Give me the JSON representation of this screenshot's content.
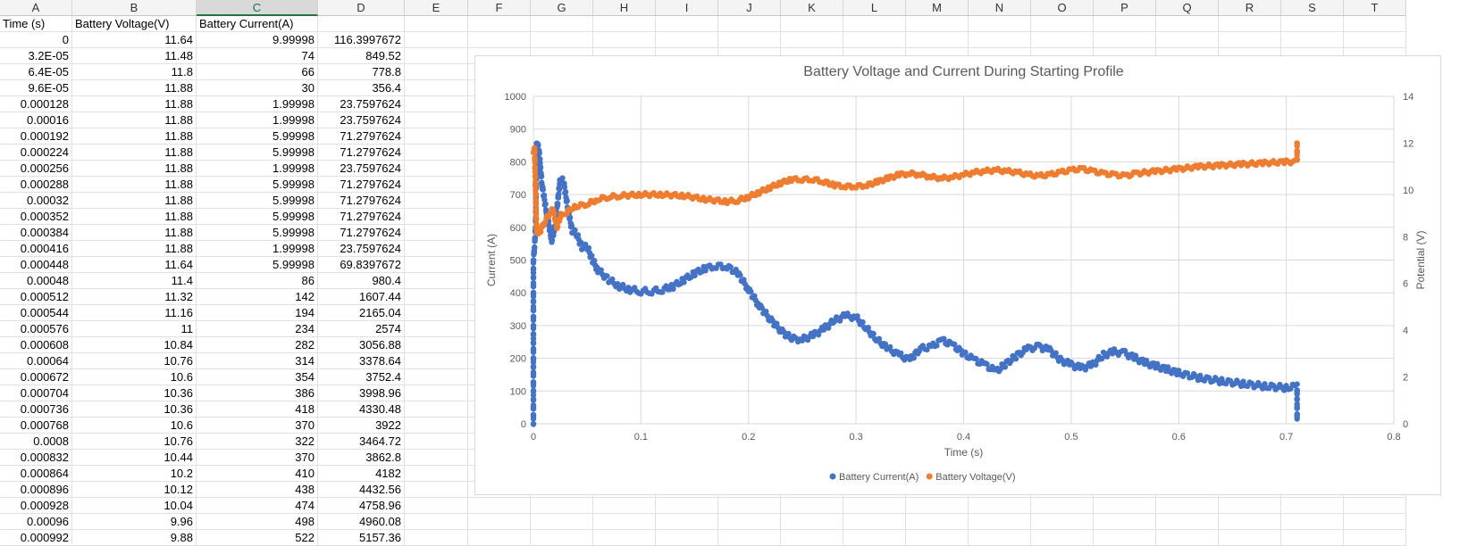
{
  "spreadsheet": {
    "columns": [
      "A",
      "B",
      "C",
      "D",
      "E",
      "F",
      "G",
      "H",
      "I",
      "J",
      "K",
      "L",
      "M",
      "N",
      "O",
      "P",
      "Q",
      "R",
      "S",
      "T"
    ],
    "selected_column": "C",
    "headers": [
      "Time (s)",
      "Battery Voltage(V)",
      "Battery Current(A)"
    ],
    "rows": [
      [
        "0",
        "11.64",
        "9.99998",
        "116.3997672"
      ],
      [
        "3.2E-05",
        "11.48",
        "74",
        "849.52"
      ],
      [
        "6.4E-05",
        "11.8",
        "66",
        "778.8"
      ],
      [
        "9.6E-05",
        "11.88",
        "30",
        "356.4"
      ],
      [
        "0.000128",
        "11.88",
        "1.99998",
        "23.7597624"
      ],
      [
        "0.00016",
        "11.88",
        "1.99998",
        "23.7597624"
      ],
      [
        "0.000192",
        "11.88",
        "5.99998",
        "71.2797624"
      ],
      [
        "0.000224",
        "11.88",
        "5.99998",
        "71.2797624"
      ],
      [
        "0.000256",
        "11.88",
        "1.99998",
        "23.7597624"
      ],
      [
        "0.000288",
        "11.88",
        "5.99998",
        "71.2797624"
      ],
      [
        "0.00032",
        "11.88",
        "5.99998",
        "71.2797624"
      ],
      [
        "0.000352",
        "11.88",
        "5.99998",
        "71.2797624"
      ],
      [
        "0.000384",
        "11.88",
        "5.99998",
        "71.2797624"
      ],
      [
        "0.000416",
        "11.88",
        "1.99998",
        "23.7597624"
      ],
      [
        "0.000448",
        "11.64",
        "5.99998",
        "69.8397672"
      ],
      [
        "0.00048",
        "11.4",
        "86",
        "980.4"
      ],
      [
        "0.000512",
        "11.32",
        "142",
        "1607.44"
      ],
      [
        "0.000544",
        "11.16",
        "194",
        "2165.04"
      ],
      [
        "0.000576",
        "11",
        "234",
        "2574"
      ],
      [
        "0.000608",
        "10.84",
        "282",
        "3056.88"
      ],
      [
        "0.00064",
        "10.76",
        "314",
        "3378.64"
      ],
      [
        "0.000672",
        "10.6",
        "354",
        "3752.4"
      ],
      [
        "0.000704",
        "10.36",
        "386",
        "3998.96"
      ],
      [
        "0.000736",
        "10.36",
        "418",
        "4330.48"
      ],
      [
        "0.000768",
        "10.6",
        "370",
        "3922"
      ],
      [
        "0.0008",
        "10.76",
        "322",
        "3464.72"
      ],
      [
        "0.000832",
        "10.44",
        "370",
        "3862.8"
      ],
      [
        "0.000864",
        "10.2",
        "410",
        "4182"
      ],
      [
        "0.000896",
        "10.12",
        "438",
        "4432.56"
      ],
      [
        "0.000928",
        "10.04",
        "474",
        "4758.96"
      ],
      [
        "0.00096",
        "9.96",
        "498",
        "4960.08"
      ],
      [
        "0.000992",
        "9.88",
        "522",
        "5157.36"
      ]
    ]
  },
  "chart_data": {
    "type": "scatter",
    "title": "Battery Voltage and Current During Starting Profile",
    "xlabel": "Time (s)",
    "ylabel": "Current (A)",
    "y2label": "Potential (V)",
    "xlim": [
      0,
      0.8
    ],
    "ylim": [
      0,
      1000
    ],
    "y2lim": [
      0,
      14
    ],
    "x_ticks": [
      "0",
      "0.1",
      "0.2",
      "0.3",
      "0.4",
      "0.5",
      "0.6",
      "0.7",
      "0.8"
    ],
    "y_ticks": [
      "0",
      "100",
      "200",
      "300",
      "400",
      "500",
      "600",
      "700",
      "800",
      "900",
      "1000"
    ],
    "y2_ticks": [
      "0",
      "2",
      "4",
      "6",
      "8",
      "10",
      "12",
      "14"
    ],
    "grid": true,
    "legend_position": "bottom",
    "series": [
      {
        "name": "Battery Current(A)",
        "axis": "left",
        "color": "#4472C4",
        "points": [
          [
            0,
            0
          ],
          [
            0,
            100
          ],
          [
            0,
            300
          ],
          [
            0,
            500
          ],
          [
            0.001,
            540
          ],
          [
            0.002,
            600
          ],
          [
            0.003,
            860
          ],
          [
            0.005,
            840
          ],
          [
            0.008,
            730
          ],
          [
            0.012,
            650
          ],
          [
            0.017,
            560
          ],
          [
            0.02,
            600
          ],
          [
            0.025,
            750
          ],
          [
            0.028,
            740
          ],
          [
            0.032,
            660
          ],
          [
            0.036,
            590
          ],
          [
            0.04,
            580
          ],
          [
            0.045,
            540
          ],
          [
            0.05,
            540
          ],
          [
            0.055,
            500
          ],
          [
            0.06,
            470
          ],
          [
            0.07,
            440
          ],
          [
            0.08,
            420
          ],
          [
            0.09,
            410
          ],
          [
            0.1,
            405
          ],
          [
            0.11,
            405
          ],
          [
            0.12,
            410
          ],
          [
            0.13,
            420
          ],
          [
            0.14,
            440
          ],
          [
            0.15,
            460
          ],
          [
            0.16,
            475
          ],
          [
            0.17,
            482
          ],
          [
            0.18,
            480
          ],
          [
            0.19,
            460
          ],
          [
            0.2,
            410
          ],
          [
            0.21,
            360
          ],
          [
            0.22,
            320
          ],
          [
            0.23,
            285
          ],
          [
            0.24,
            260
          ],
          [
            0.25,
            258
          ],
          [
            0.26,
            270
          ],
          [
            0.27,
            290
          ],
          [
            0.28,
            315
          ],
          [
            0.29,
            330
          ],
          [
            0.3,
            325
          ],
          [
            0.31,
            290
          ],
          [
            0.32,
            255
          ],
          [
            0.33,
            230
          ],
          [
            0.34,
            210
          ],
          [
            0.35,
            195
          ],
          [
            0.36,
            230
          ],
          [
            0.37,
            235
          ],
          [
            0.38,
            255
          ],
          [
            0.39,
            240
          ],
          [
            0.4,
            215
          ],
          [
            0.41,
            195
          ],
          [
            0.42,
            180
          ],
          [
            0.43,
            160
          ],
          [
            0.44,
            185
          ],
          [
            0.45,
            210
          ],
          [
            0.46,
            230
          ],
          [
            0.47,
            235
          ],
          [
            0.48,
            225
          ],
          [
            0.49,
            195
          ],
          [
            0.5,
            180
          ],
          [
            0.51,
            170
          ],
          [
            0.52,
            180
          ],
          [
            0.53,
            210
          ],
          [
            0.54,
            220
          ],
          [
            0.55,
            215
          ],
          [
            0.56,
            200
          ],
          [
            0.57,
            185
          ],
          [
            0.58,
            175
          ],
          [
            0.59,
            165
          ],
          [
            0.6,
            155
          ],
          [
            0.62,
            140
          ],
          [
            0.64,
            130
          ],
          [
            0.66,
            122
          ],
          [
            0.68,
            115
          ],
          [
            0.7,
            110
          ],
          [
            0.71,
            115
          ],
          [
            0.71,
            15
          ]
        ]
      },
      {
        "name": "Battery Voltage(V)",
        "axis": "right",
        "color": "#ED7D31",
        "points": [
          [
            0,
            11.6
          ],
          [
            0.001,
            11.8
          ],
          [
            0.002,
            10
          ],
          [
            0.003,
            8.2
          ],
          [
            0.006,
            8.2
          ],
          [
            0.01,
            8.6
          ],
          [
            0.015,
            9.0
          ],
          [
            0.018,
            9.2
          ],
          [
            0.022,
            8.4
          ],
          [
            0.026,
            9.0
          ],
          [
            0.03,
            9.0
          ],
          [
            0.035,
            9.2
          ],
          [
            0.04,
            9.3
          ],
          [
            0.05,
            9.4
          ],
          [
            0.06,
            9.6
          ],
          [
            0.07,
            9.7
          ],
          [
            0.08,
            9.75
          ],
          [
            0.1,
            9.8
          ],
          [
            0.12,
            9.8
          ],
          [
            0.14,
            9.75
          ],
          [
            0.16,
            9.6
          ],
          [
            0.18,
            9.5
          ],
          [
            0.19,
            9.55
          ],
          [
            0.2,
            9.7
          ],
          [
            0.21,
            9.9
          ],
          [
            0.22,
            10.1
          ],
          [
            0.23,
            10.3
          ],
          [
            0.24,
            10.45
          ],
          [
            0.25,
            10.45
          ],
          [
            0.26,
            10.45
          ],
          [
            0.27,
            10.35
          ],
          [
            0.28,
            10.2
          ],
          [
            0.29,
            10.15
          ],
          [
            0.3,
            10.15
          ],
          [
            0.31,
            10.2
          ],
          [
            0.32,
            10.35
          ],
          [
            0.33,
            10.5
          ],
          [
            0.34,
            10.65
          ],
          [
            0.35,
            10.7
          ],
          [
            0.36,
            10.65
          ],
          [
            0.37,
            10.55
          ],
          [
            0.38,
            10.5
          ],
          [
            0.39,
            10.55
          ],
          [
            0.4,
            10.65
          ],
          [
            0.41,
            10.75
          ],
          [
            0.42,
            10.8
          ],
          [
            0.43,
            10.85
          ],
          [
            0.44,
            10.8
          ],
          [
            0.45,
            10.75
          ],
          [
            0.46,
            10.65
          ],
          [
            0.47,
            10.6
          ],
          [
            0.48,
            10.65
          ],
          [
            0.49,
            10.75
          ],
          [
            0.5,
            10.85
          ],
          [
            0.51,
            10.9
          ],
          [
            0.52,
            10.8
          ],
          [
            0.53,
            10.7
          ],
          [
            0.54,
            10.65
          ],
          [
            0.55,
            10.6
          ],
          [
            0.56,
            10.7
          ],
          [
            0.58,
            10.8
          ],
          [
            0.6,
            10.9
          ],
          [
            0.62,
            11.0
          ],
          [
            0.64,
            11.05
          ],
          [
            0.66,
            11.1
          ],
          [
            0.68,
            11.15
          ],
          [
            0.7,
            11.2
          ],
          [
            0.71,
            11.2
          ],
          [
            0.71,
            12.0
          ]
        ]
      }
    ]
  }
}
